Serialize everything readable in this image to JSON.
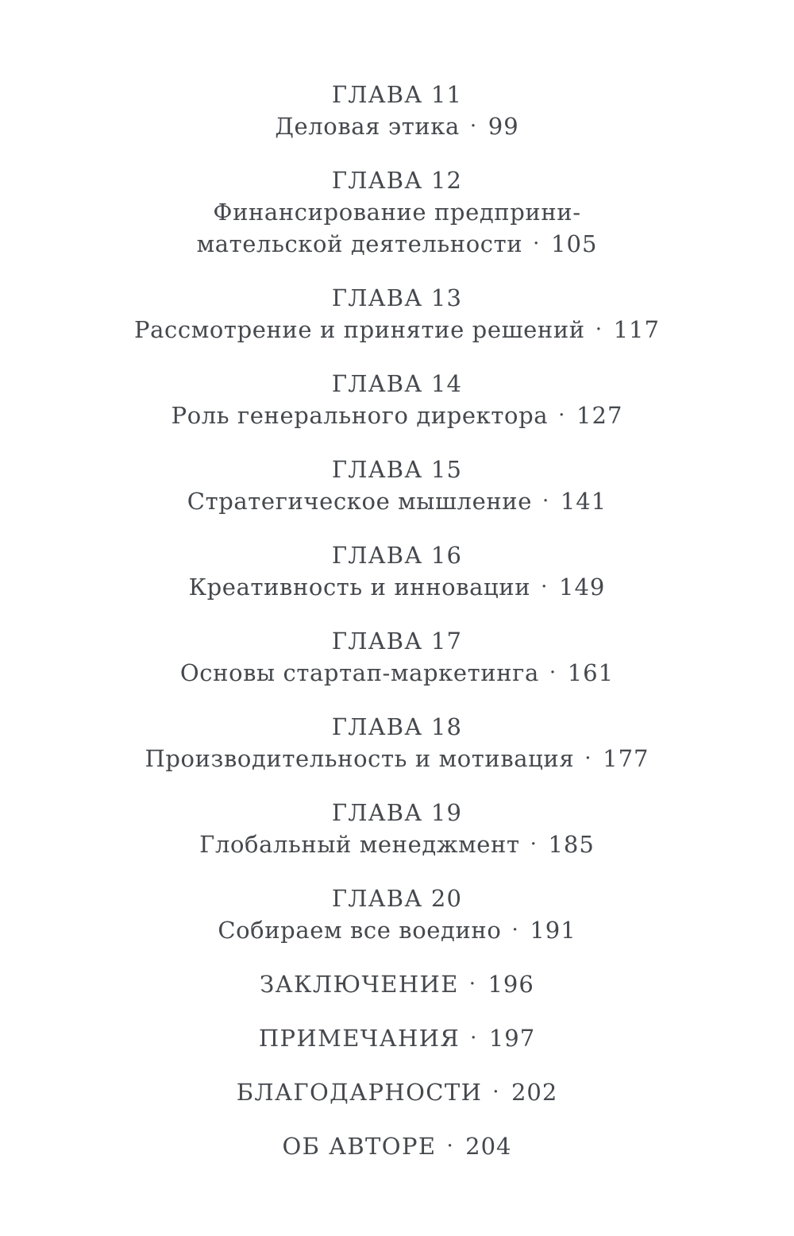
{
  "page": {
    "background_color": "#ffffff",
    "text_color": "#45484d"
  },
  "toc": {
    "separator": "·",
    "chapters": [
      {
        "heading": "ГЛАВА 11",
        "title": "Деловая этика",
        "page": "99"
      },
      {
        "heading": "ГЛАВА 12",
        "title_line1": "Финансирование предприни-",
        "title_line2": "мательской деятельности",
        "page": "105"
      },
      {
        "heading": "ГЛАВА 13",
        "title": "Рассмотрение и принятие решений",
        "page": "117"
      },
      {
        "heading": "ГЛАВА 14",
        "title": "Роль генерального директора",
        "page": "127"
      },
      {
        "heading": "ГЛАВА 15",
        "title": "Стратегическое мышление",
        "page": "141"
      },
      {
        "heading": "ГЛАВА 16",
        "title": "Креативность и инновации",
        "page": "149"
      },
      {
        "heading": "ГЛАВА 17",
        "title": "Основы стартап-маркетинга",
        "page": "161"
      },
      {
        "heading": "ГЛАВА 18",
        "title": "Производительность и мотивация",
        "page": "177"
      },
      {
        "heading": "ГЛАВА 19",
        "title": "Глобальный менеджмент",
        "page": "185"
      },
      {
        "heading": "ГЛАВА 20",
        "title": "Собираем все воедино",
        "page": "191"
      }
    ],
    "back_matter": [
      {
        "title": "ЗАКЛЮЧЕНИЕ",
        "page": "196"
      },
      {
        "title": "ПРИМЕЧАНИЯ",
        "page": "197"
      },
      {
        "title": "БЛАГОДАРНОСТИ",
        "page": "202"
      },
      {
        "title": "ОБ АВТОРЕ",
        "page": "204"
      }
    ]
  }
}
